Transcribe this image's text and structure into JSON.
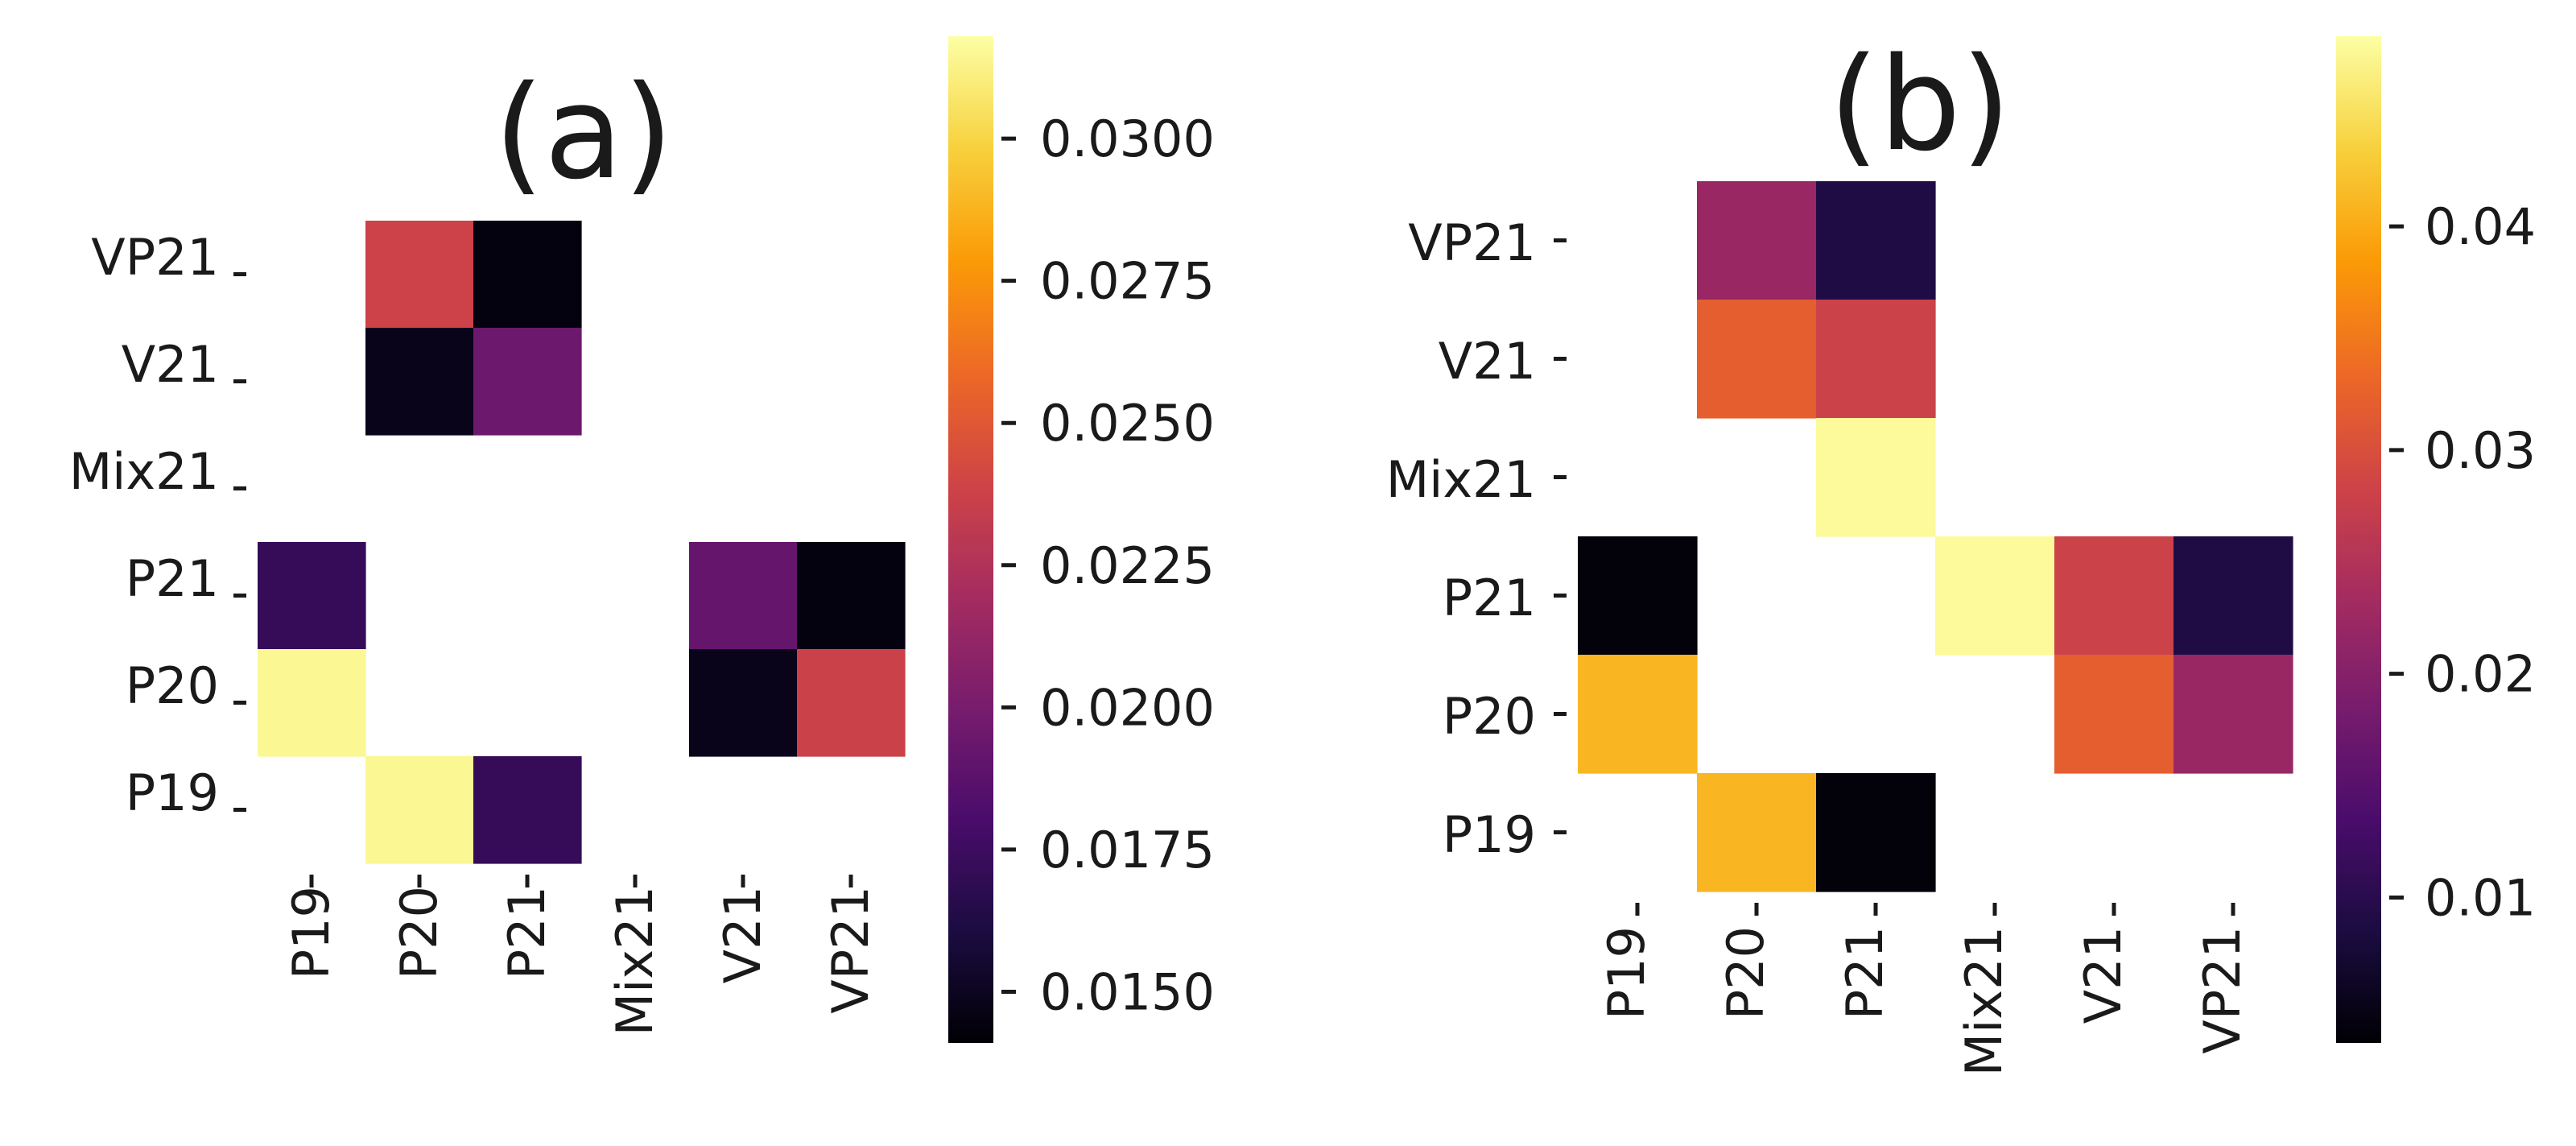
{
  "chart_data": [
    {
      "type": "heatmap",
      "title": "(a)",
      "x_categories": [
        "P19",
        "P20",
        "P21",
        "Mix21",
        "V21",
        "VP21"
      ],
      "y_categories": [
        "VP21",
        "V21",
        "Mix21",
        "P21",
        "P20",
        "P19"
      ],
      "cells": [
        {
          "x": "P20",
          "y": "VP21",
          "value": 0.0238
        },
        {
          "x": "P21",
          "y": "VP21",
          "value": 0.0145
        },
        {
          "x": "P20",
          "y": "V21",
          "value": 0.0148
        },
        {
          "x": "P21",
          "y": "V21",
          "value": 0.0195
        },
        {
          "x": "P19",
          "y": "P21",
          "value": 0.0172
        },
        {
          "x": "V21",
          "y": "P21",
          "value": 0.0192
        },
        {
          "x": "VP21",
          "y": "P21",
          "value": 0.0145
        },
        {
          "x": "P19",
          "y": "P20",
          "value": 0.0315
        },
        {
          "x": "V21",
          "y": "P20",
          "value": 0.0148
        },
        {
          "x": "VP21",
          "y": "P20",
          "value": 0.0237
        },
        {
          "x": "P20",
          "y": "P19",
          "value": 0.0315
        },
        {
          "x": "P21",
          "y": "P19",
          "value": 0.0172
        }
      ],
      "colorbar": {
        "min": 0.0141,
        "max": 0.0318,
        "ticks": [
          0.015,
          0.0175,
          0.02,
          0.0225,
          0.025,
          0.0275,
          0.03
        ],
        "tick_labels": [
          "0.0150",
          "0.0175",
          "0.0200",
          "0.0225",
          "0.0250",
          "0.0275",
          "0.0300"
        ]
      },
      "colormap": "inferno"
    },
    {
      "type": "heatmap",
      "title": "(b)",
      "x_categories": [
        "P19",
        "P20",
        "P21",
        "Mix21",
        "V21",
        "VP21"
      ],
      "y_categories": [
        "VP21",
        "V21",
        "Mix21",
        "P21",
        "P20",
        "P19"
      ],
      "cells": [
        {
          "x": "P20",
          "y": "VP21",
          "value": 0.022
        },
        {
          "x": "P21",
          "y": "VP21",
          "value": 0.009
        },
        {
          "x": "P20",
          "y": "V21",
          "value": 0.032
        },
        {
          "x": "P21",
          "y": "V21",
          "value": 0.028
        },
        {
          "x": "P21",
          "y": "Mix21",
          "value": 0.048
        },
        {
          "x": "P19",
          "y": "P21",
          "value": 0.004
        },
        {
          "x": "Mix21",
          "y": "P21",
          "value": 0.048
        },
        {
          "x": "V21",
          "y": "P21",
          "value": 0.028
        },
        {
          "x": "VP21",
          "y": "P21",
          "value": 0.009
        },
        {
          "x": "P19",
          "y": "P20",
          "value": 0.041
        },
        {
          "x": "V21",
          "y": "P20",
          "value": 0.032
        },
        {
          "x": "VP21",
          "y": "P20",
          "value": 0.022
        },
        {
          "x": "P20",
          "y": "P19",
          "value": 0.041
        },
        {
          "x": "P21",
          "y": "P19",
          "value": 0.004
        }
      ],
      "colorbar": {
        "min": 0.0035,
        "max": 0.0485,
        "ticks": [
          0.01,
          0.02,
          0.03,
          0.04
        ],
        "tick_labels": [
          "0.01",
          "0.02",
          "0.03",
          "0.04"
        ]
      },
      "colormap": "inferno"
    }
  ]
}
